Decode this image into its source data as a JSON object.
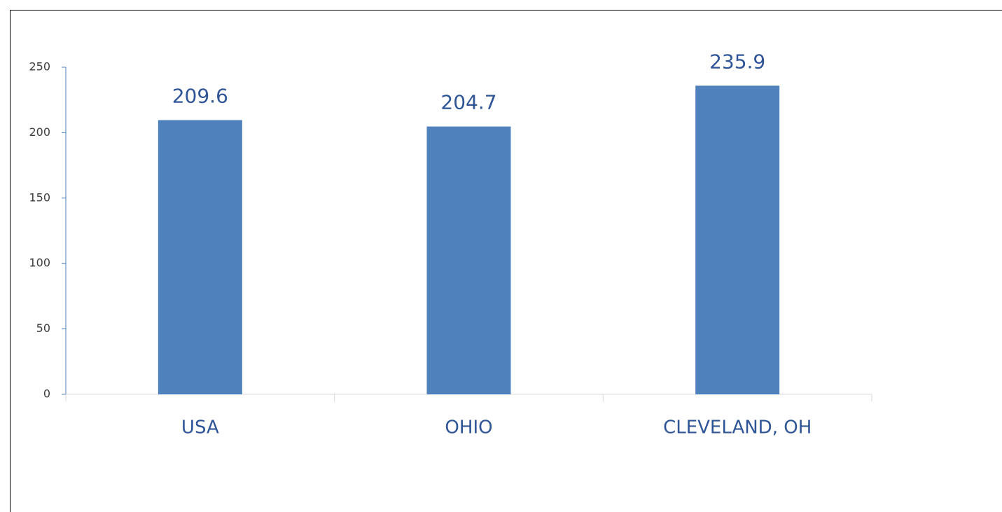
{
  "chart_data": {
    "type": "bar",
    "categories": [
      "USA",
      "OHIO",
      "CLEVELAND, OH"
    ],
    "values": [
      209.6,
      204.7,
      235.9
    ],
    "color": "#4f81bd",
    "ylim": [
      0,
      250
    ],
    "yticks": [
      0,
      50,
      100,
      150,
      200,
      250
    ],
    "grid": false
  }
}
